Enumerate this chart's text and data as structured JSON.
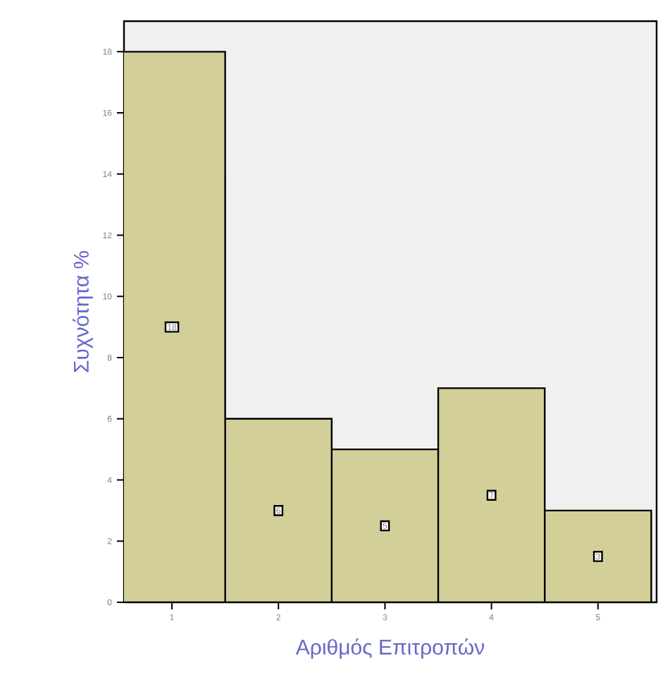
{
  "chart_data": {
    "type": "bar",
    "xlabel": "Αριθμός Επιτροπών",
    "ylabel": "Συχνότητα %",
    "categories": [
      "1",
      "2",
      "3",
      "4",
      "5"
    ],
    "values": [
      18,
      6,
      5,
      7,
      3
    ],
    "color": "#d3cf99",
    "ylim": [
      0,
      19
    ],
    "yticks": [
      0,
      2,
      4,
      6,
      8,
      10,
      12,
      14,
      16,
      18
    ],
    "data_labels": true,
    "grid": false
  }
}
